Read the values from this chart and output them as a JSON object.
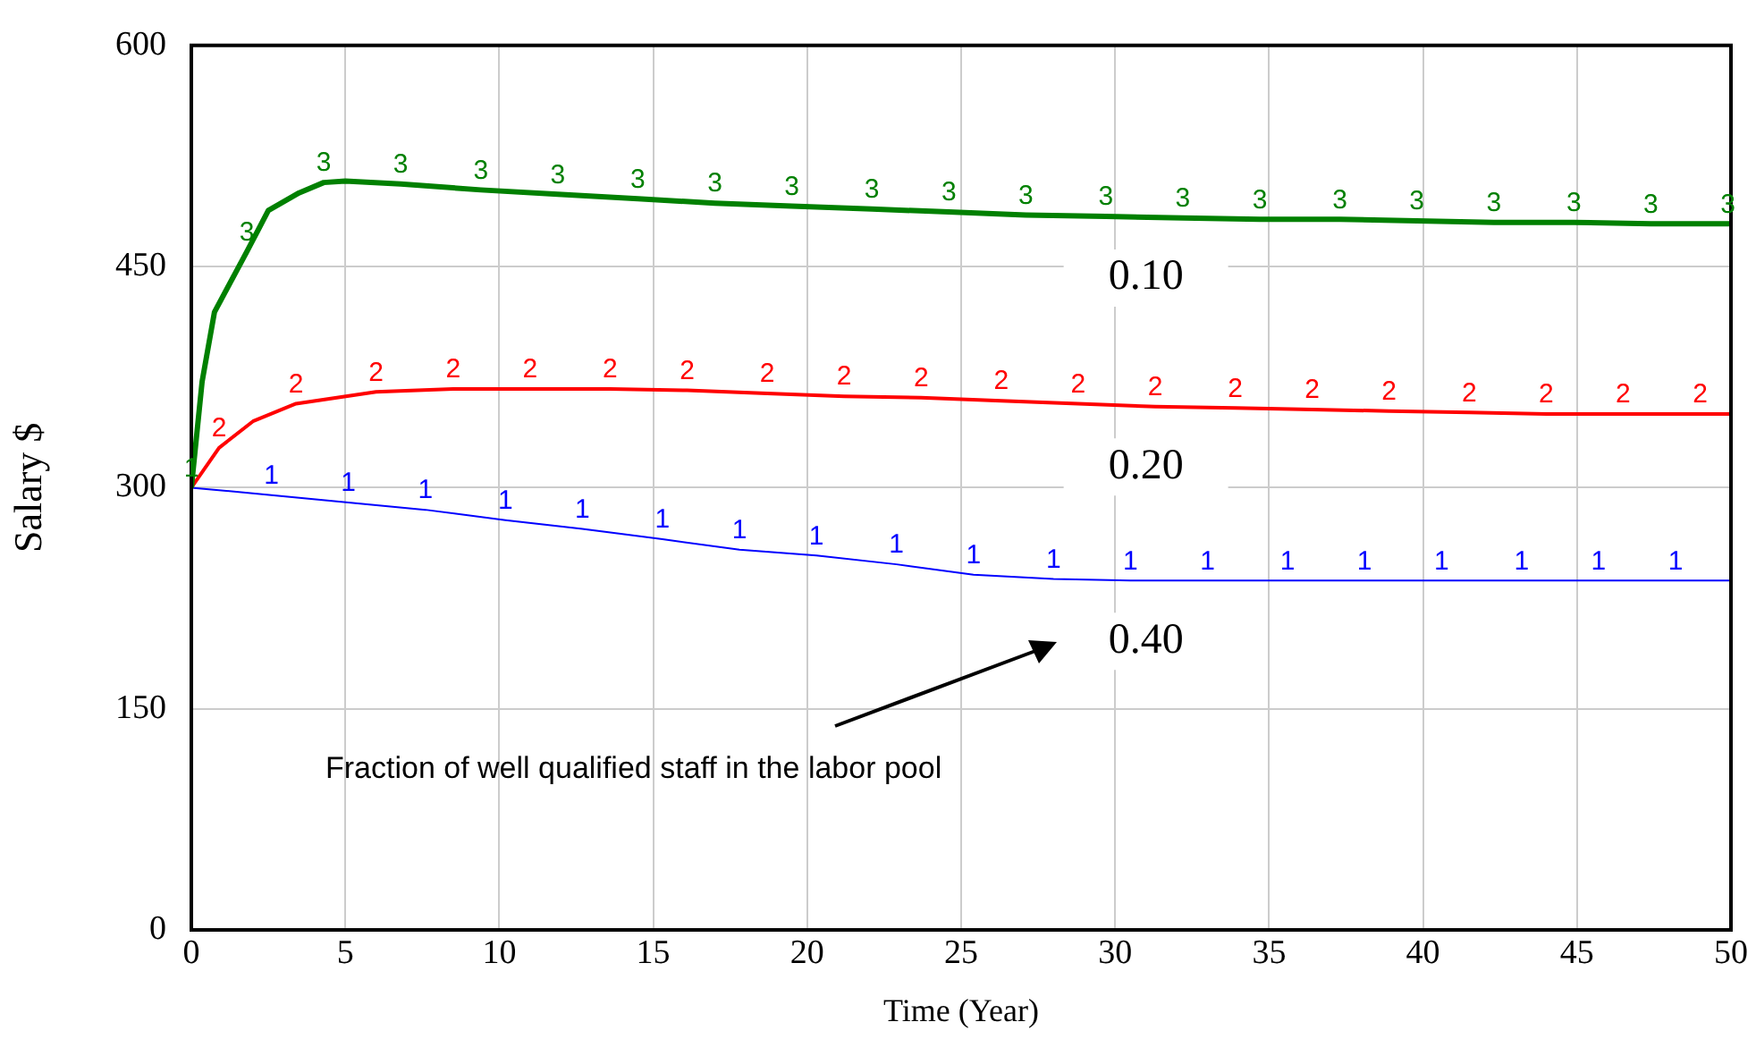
{
  "chart_data": {
    "type": "line",
    "xlabel": "Time (Year)",
    "ylabel": "Salary $",
    "xlim": [
      0,
      50
    ],
    "xticks": [
      0,
      5,
      10,
      15,
      20,
      25,
      30,
      35,
      40,
      45,
      50
    ],
    "ylim": [
      0,
      600
    ],
    "yticks": [
      0,
      150,
      300,
      450,
      600
    ],
    "grid": true,
    "series": [
      {
        "name": "0.10",
        "color": "#008000",
        "x": [
          0,
          0.35,
          0.75,
          1.8,
          2.5,
          3.5,
          4.3,
          5,
          6.8,
          9.4,
          11.9,
          14.5,
          17,
          19.5,
          22.1,
          24.6,
          27.1,
          29.7,
          32.2,
          34.7,
          37.3,
          39.8,
          42.3,
          44.9,
          47.4,
          50
        ],
        "values": [
          300,
          372,
          419,
          460,
          488,
          500,
          507,
          508,
          506,
          502,
          499,
          496,
          493,
          491,
          489,
          487,
          485,
          484,
          483,
          482,
          482,
          481,
          480,
          480,
          479,
          479
        ]
      },
      {
        "name": "0.20",
        "color": "#ff0000",
        "x": [
          0,
          0.9,
          2,
          3.4,
          6,
          8.5,
          11,
          13.6,
          16.1,
          18.7,
          21.2,
          23.7,
          26.3,
          28.8,
          31.3,
          33.9,
          36.4,
          38.9,
          41.5,
          44,
          46.5,
          50
        ],
        "values": [
          300,
          327,
          345,
          357,
          365,
          367,
          367,
          367,
          366,
          364,
          362,
          361,
          359,
          357,
          355,
          354,
          353,
          352,
          351,
          350,
          350,
          350
        ]
      },
      {
        "name": "0.40",
        "color": "#0000ff",
        "x": [
          0,
          2.6,
          5.1,
          7.6,
          10.2,
          12.7,
          15.3,
          17.8,
          20.3,
          22.9,
          25.4,
          28,
          30.5,
          33,
          35.6,
          38.1,
          40.6,
          43.2,
          45.7,
          48.2,
          50
        ],
        "values": [
          300,
          295,
          290,
          285,
          278,
          272,
          265,
          258,
          254,
          248,
          241,
          238,
          237,
          237,
          237,
          237,
          237,
          237,
          237,
          237,
          237
        ]
      }
    ],
    "annotations": [
      "Fraction of well qualified staff in the labor pool",
      {
        "text": "3",
        "x": 1.8,
        "y": 460
      },
      {
        "text": "3",
        "x": 4.3,
        "y": 507
      },
      {
        "text": "3",
        "x": 6.8,
        "y": 506
      },
      {
        "text": "3",
        "x": 9.4,
        "y": 502
      },
      {
        "text": "3",
        "x": 11.9,
        "y": 499
      },
      {
        "text": "3",
        "x": 14.5,
        "y": 496
      },
      {
        "text": "3",
        "x": 17,
        "y": 493
      },
      {
        "text": "3",
        "x": 19.5,
        "y": 491
      },
      {
        "text": "3",
        "x": 22.1,
        "y": 489
      },
      {
        "text": "3",
        "x": 24.6,
        "y": 487
      },
      {
        "text": "3",
        "x": 27.1,
        "y": 485
      },
      {
        "text": "3",
        "x": 29.7,
        "y": 484
      },
      {
        "text": "3",
        "x": 32.2,
        "y": 483
      },
      {
        "text": "3",
        "x": 34.7,
        "y": 482
      },
      {
        "text": "3",
        "x": 37.3,
        "y": 482
      },
      {
        "text": "3",
        "x": 39.8,
        "y": 481
      },
      {
        "text": "3",
        "x": 42.3,
        "y": 480
      },
      {
        "text": "3",
        "x": 44.9,
        "y": 480
      },
      {
        "text": "3",
        "x": 47.4,
        "y": 479
      },
      {
        "text": "3",
        "x": 49.9,
        "y": 479
      },
      {
        "text": "2",
        "x": 0.9,
        "y": 327
      },
      {
        "text": "2",
        "x": 3.4,
        "y": 357
      },
      {
        "text": "2",
        "x": 6,
        "y": 365
      },
      {
        "text": "2",
        "x": 8.5,
        "y": 367
      },
      {
        "text": "2",
        "x": 11,
        "y": 367
      },
      {
        "text": "2",
        "x": 13.6,
        "y": 367
      },
      {
        "text": "2",
        "x": 16.1,
        "y": 366
      },
      {
        "text": "2",
        "x": 18.7,
        "y": 364
      },
      {
        "text": "2",
        "x": 21.2,
        "y": 362
      },
      {
        "text": "2",
        "x": 23.7,
        "y": 361
      },
      {
        "text": "2",
        "x": 26.3,
        "y": 359
      },
      {
        "text": "2",
        "x": 28.8,
        "y": 357
      },
      {
        "text": "2",
        "x": 31.3,
        "y": 355
      },
      {
        "text": "2",
        "x": 33.9,
        "y": 354
      },
      {
        "text": "2",
        "x": 36.4,
        "y": 353
      },
      {
        "text": "2",
        "x": 38.9,
        "y": 352
      },
      {
        "text": "2",
        "x": 41.5,
        "y": 351
      },
      {
        "text": "2",
        "x": 44,
        "y": 350
      },
      {
        "text": "2",
        "x": 46.5,
        "y": 350
      },
      {
        "text": "2",
        "x": 49,
        "y": 350
      },
      {
        "text": "1",
        "x": 0,
        "y": 300
      },
      {
        "text": "1",
        "x": 2.6,
        "y": 295
      },
      {
        "text": "1",
        "x": 5.1,
        "y": 290
      },
      {
        "text": "1",
        "x": 7.6,
        "y": 285
      },
      {
        "text": "1",
        "x": 10.2,
        "y": 278
      },
      {
        "text": "1",
        "x": 12.7,
        "y": 272
      },
      {
        "text": "1",
        "x": 15.3,
        "y": 265
      },
      {
        "text": "1",
        "x": 17.8,
        "y": 258
      },
      {
        "text": "1",
        "x": 20.3,
        "y": 254
      },
      {
        "text": "1",
        "x": 22.9,
        "y": 248
      },
      {
        "text": "1",
        "x": 25.4,
        "y": 241
      },
      {
        "text": "1",
        "x": 28,
        "y": 238
      },
      {
        "text": "1",
        "x": 30.5,
        "y": 237
      },
      {
        "text": "1",
        "x": 33,
        "y": 237
      },
      {
        "text": "1",
        "x": 35.6,
        "y": 237
      },
      {
        "text": "1",
        "x": 38.1,
        "y": 237
      },
      {
        "text": "1",
        "x": 40.6,
        "y": 237
      },
      {
        "text": "1",
        "x": 43.2,
        "y": 237
      },
      {
        "text": "1",
        "x": 45.7,
        "y": 237
      },
      {
        "text": "1",
        "x": 48.2,
        "y": 237
      }
    ]
  }
}
